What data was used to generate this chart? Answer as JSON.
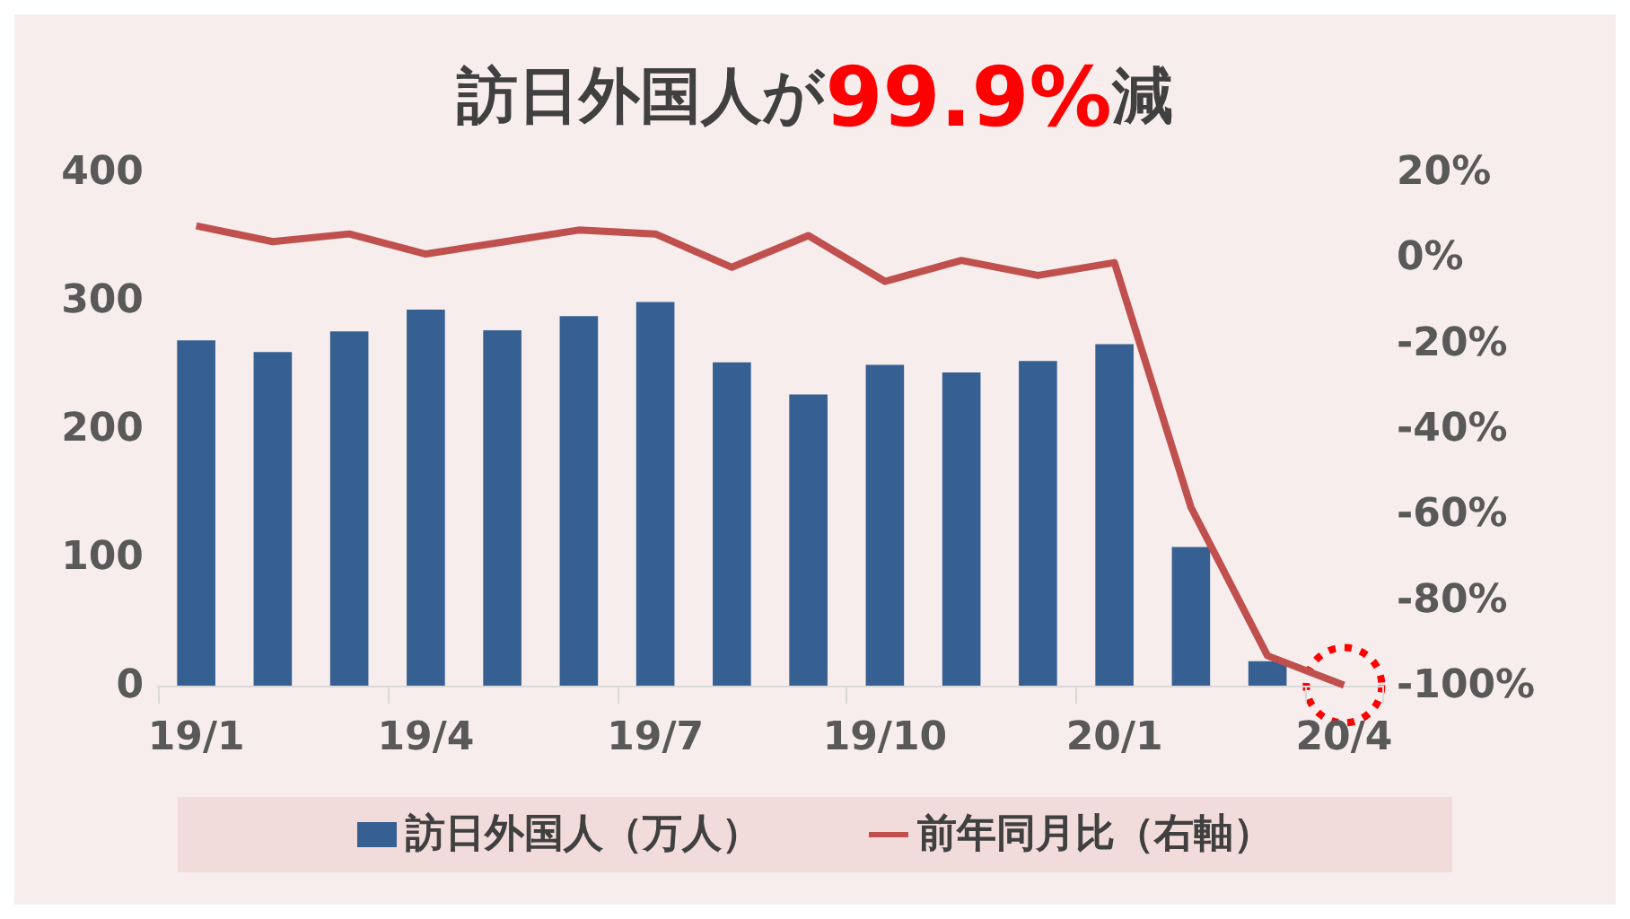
{
  "chart_data": {
    "type": "bar",
    "title": "訪日外国人が99.9%減",
    "categories": [
      "19/1",
      null,
      null,
      "19/4",
      null,
      null,
      "19/7",
      null,
      null,
      "19/10",
      null,
      null,
      "20/1",
      null,
      null,
      "20/4"
    ],
    "series": [
      {
        "name": "訪日外国人（万人）",
        "color": "#376092",
        "values": [
          269,
          260,
          276,
          293,
          277,
          288,
          299,
          252,
          227,
          250,
          244,
          253,
          266,
          108,
          19,
          0
        ]
      },
      {
        "name": "前年同月比（右軸）",
        "type": "line",
        "axis": "y2",
        "color": "#c0504d",
        "values": [
          7.5,
          3.8,
          5.6,
          0.9,
          3.7,
          6.5,
          5.6,
          -2.2,
          5.2,
          -5.5,
          -0.6,
          -4.1,
          -1.1,
          -58.3,
          -93.0,
          -99.9
        ]
      }
    ],
    "ylim": [
      0,
      400
    ],
    "yticks": [
      0,
      100,
      200,
      300,
      400
    ],
    "y2lim": [
      -100,
      20
    ],
    "y2ticks": [
      {
        "value": -100,
        "label": "-100%"
      },
      {
        "value": -80,
        "label": "-80%"
      },
      {
        "value": -60,
        "label": "-60%"
      },
      {
        "value": -40,
        "label": "-40%"
      },
      {
        "value": -20,
        "label": "-20%"
      },
      {
        "value": 0,
        "label": "0%"
      },
      {
        "value": 20,
        "label": "20%"
      }
    ],
    "legend": "bottom",
    "grid": false,
    "marker": "none"
  }
}
